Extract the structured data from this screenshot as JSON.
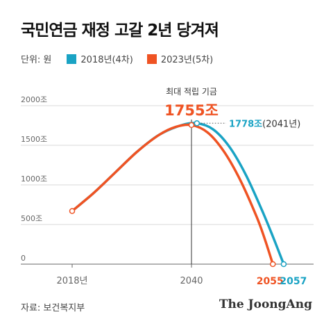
{
  "title": "국민연금 재정 고갈 2년 당겨져",
  "unit_label": "단위: 원",
  "colors": {
    "s2018": "#1aa3c4",
    "s2023": "#ef5323",
    "axis": "#666666",
    "grid": "#d9d9d9"
  },
  "chart_data": {
    "type": "line",
    "title": "국민연금 재정 고갈 2년 당겨져",
    "ylabel": "단위: 원",
    "ylim": [
      0,
      2000
    ],
    "y_ticks": [
      {
        "value": 0,
        "label": "0"
      },
      {
        "value": 500,
        "label": "500조"
      },
      {
        "value": 1000,
        "label": "1000조"
      },
      {
        "value": 1500,
        "label": "1500조"
      },
      {
        "value": 2000,
        "label": "2000조"
      }
    ],
    "x_ticks": [
      {
        "value": 2018,
        "label": "2018년"
      },
      {
        "value": 2040,
        "label": "2040"
      }
    ],
    "grid": true,
    "legend_position": "top-left",
    "series": [
      {
        "name": "2018년(4차)",
        "peak": {
          "x": 2041,
          "y": 1778,
          "label": "1778조",
          "sub": "(2041년)"
        },
        "depletion": {
          "x": 2057,
          "label": "2057"
        },
        "points": [
          {
            "x": 2018,
            "y": 670
          },
          {
            "x": 2022,
            "y": 900
          },
          {
            "x": 2026,
            "y": 1160
          },
          {
            "x": 2030,
            "y": 1420
          },
          {
            "x": 2034,
            "y": 1630
          },
          {
            "x": 2038,
            "y": 1750
          },
          {
            "x": 2041,
            "y": 1778
          },
          {
            "x": 2044,
            "y": 1700
          },
          {
            "x": 2047,
            "y": 1480
          },
          {
            "x": 2050,
            "y": 1130
          },
          {
            "x": 2053,
            "y": 680
          },
          {
            "x": 2055,
            "y": 350
          },
          {
            "x": 2057,
            "y": 0
          }
        ]
      },
      {
        "name": "2023년(5차)",
        "peak": {
          "x": 2040,
          "y": 1755,
          "label": "1755조",
          "caption": "최대 적립 기금"
        },
        "depletion": {
          "x": 2055,
          "label": "2055"
        },
        "points": [
          {
            "x": 2018,
            "y": 670
          },
          {
            "x": 2022,
            "y": 900
          },
          {
            "x": 2026,
            "y": 1160
          },
          {
            "x": 2030,
            "y": 1420
          },
          {
            "x": 2034,
            "y": 1630
          },
          {
            "x": 2037,
            "y": 1730
          },
          {
            "x": 2040,
            "y": 1755
          },
          {
            "x": 2043,
            "y": 1660
          },
          {
            "x": 2046,
            "y": 1420
          },
          {
            "x": 2049,
            "y": 1060
          },
          {
            "x": 2052,
            "y": 600
          },
          {
            "x": 2053.5,
            "y": 320
          },
          {
            "x": 2055,
            "y": 0
          }
        ]
      }
    ]
  },
  "source": "자료: 보건복지부",
  "brand": "The JoongAng"
}
